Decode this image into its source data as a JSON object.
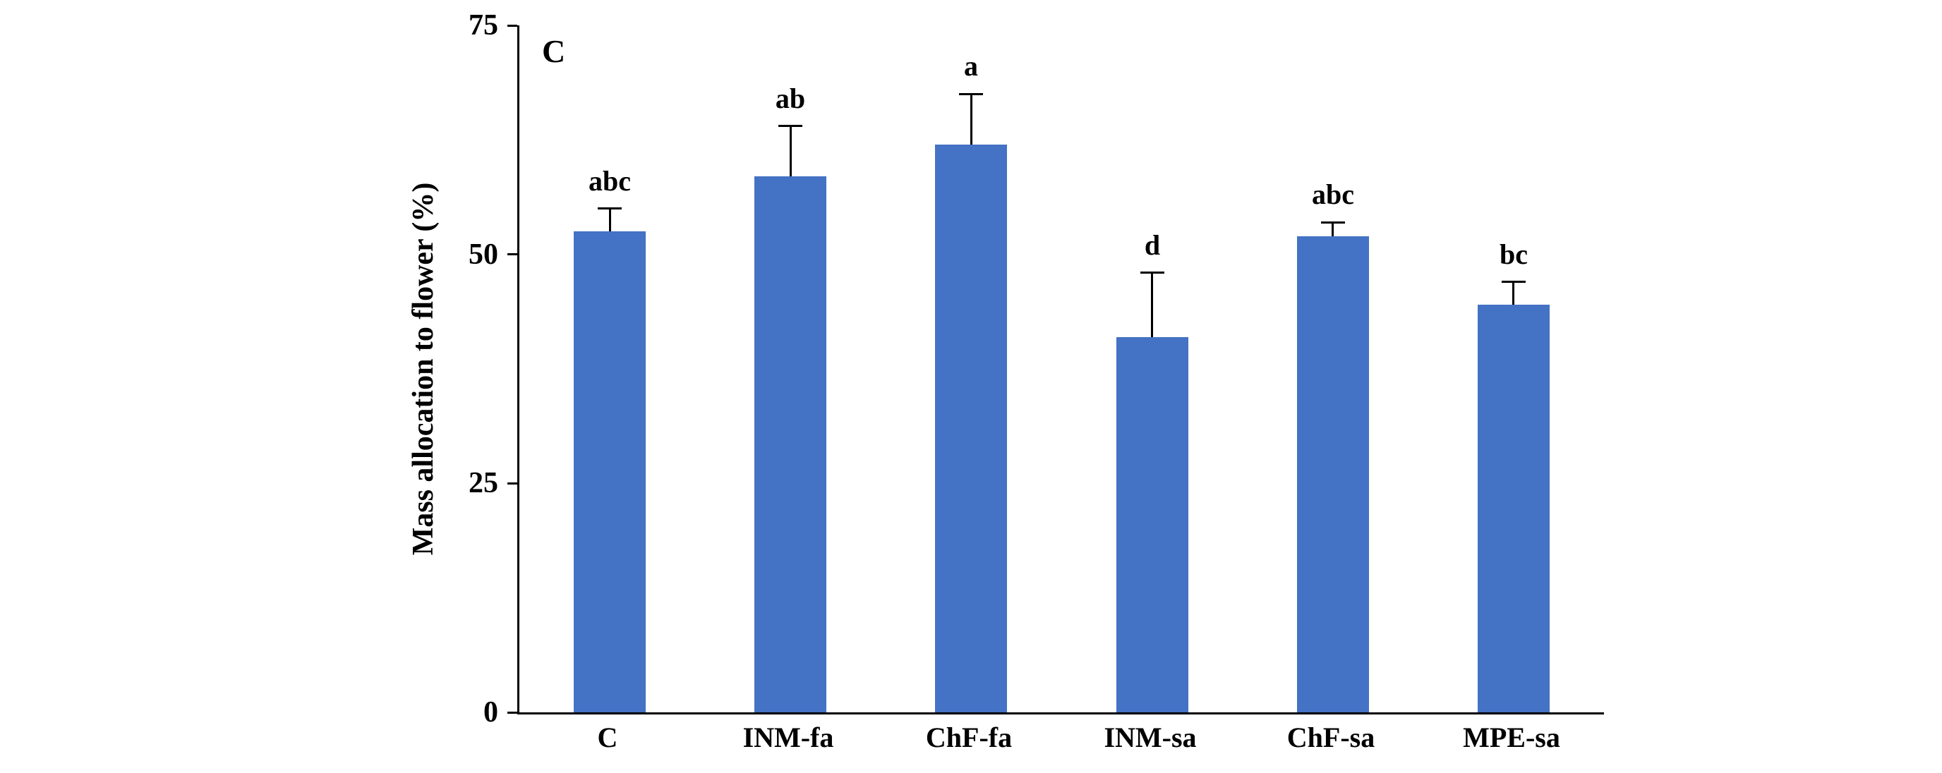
{
  "chart_data": {
    "type": "bar",
    "panel_label": "C",
    "title": "",
    "xlabel": "",
    "ylabel": "Mass allocation to flower (%)",
    "ylim": [
      0,
      75
    ],
    "yticks": [
      0,
      25,
      50,
      75
    ],
    "categories": [
      "C",
      "INM-fa",
      "ChF-fa",
      "INM-sa",
      "ChF-sa",
      "MPE-sa"
    ],
    "values": [
      52.5,
      58.5,
      62,
      41,
      52,
      44.5
    ],
    "errors_upper": [
      2.5,
      5.5,
      5.5,
      7,
      1.5,
      2.5
    ],
    "sig_letters": [
      "abc",
      "ab",
      "a",
      "d",
      "abc",
      "bc"
    ],
    "bar_color": "#4472C4",
    "axis_color": "#000000",
    "grid": false,
    "legend": false
  }
}
